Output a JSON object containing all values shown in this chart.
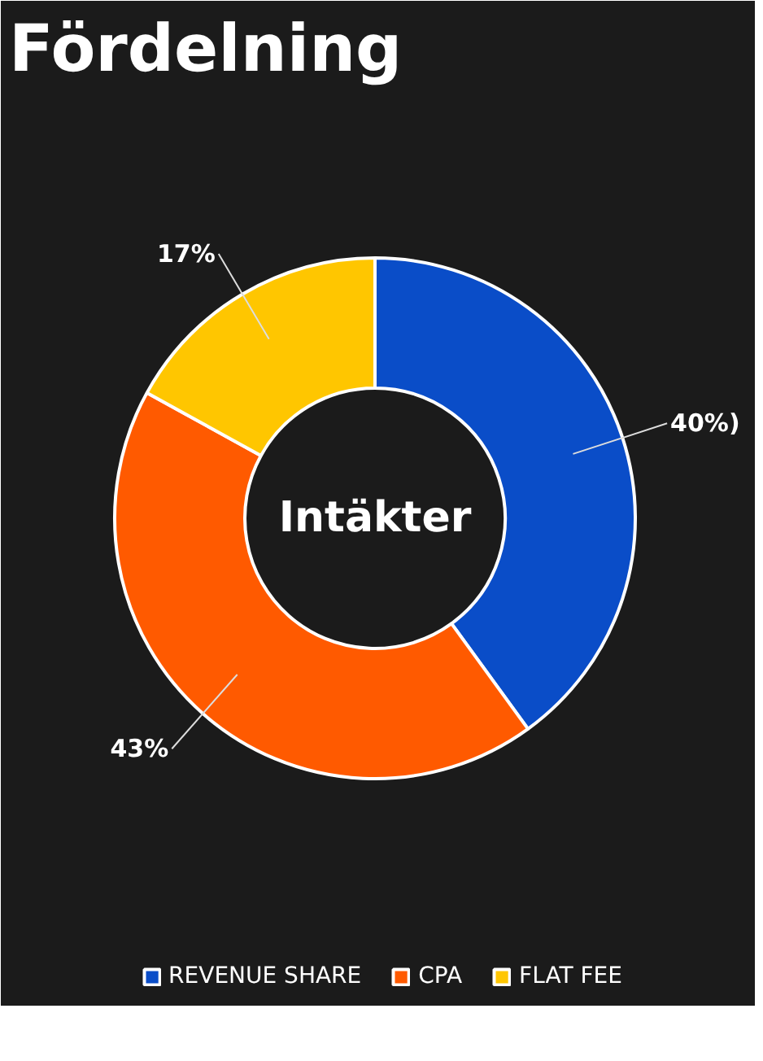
{
  "chart_data": {
    "type": "donut",
    "title": "Fördelning",
    "categories": [
      "REVENUE SHARE",
      "CPA",
      "FLAT FEE"
    ],
    "values": [
      40,
      43,
      17
    ],
    "colors": [
      "#0a4dc8",
      "#ff5a00",
      "#ffc600"
    ],
    "value_labels": [
      "40%)",
      "43%",
      "17%"
    ],
    "annotations": [
      "Intäkter"
    ],
    "legend": "bottom"
  }
}
